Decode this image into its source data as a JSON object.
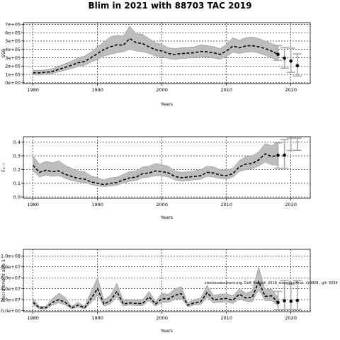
{
  "title": "Blim in 2021 with 88703 TAC 2019",
  "chart_data": [
    {
      "type": "line",
      "panel": "ssb",
      "ylabel": "SSB",
      "xlabel": "Years",
      "xlim": [
        1978.5,
        2023
      ],
      "ylim": [
        -10000,
        720000
      ],
      "xticks": [
        1980,
        1990,
        2000,
        2010,
        2020
      ],
      "yticks": [
        0,
        100000,
        200000,
        300000,
        400000,
        500000,
        600000,
        700000
      ],
      "ytick_labels": [
        "0e+00",
        "1e+05",
        "2e+05",
        "3e+05",
        "4e+05",
        "5e+05",
        "6e+05",
        "7e+05"
      ],
      "grid": true,
      "x": [
        1980,
        1981,
        1982,
        1983,
        1984,
        1985,
        1986,
        1987,
        1988,
        1989,
        1990,
        1991,
        1992,
        1993,
        1994,
        1995,
        1996,
        1997,
        1998,
        1999,
        2000,
        2001,
        2002,
        2003,
        2004,
        2005,
        2006,
        2007,
        2008,
        2009,
        2010,
        2011,
        2012,
        2013,
        2014,
        2015,
        2016,
        2017,
        2018
      ],
      "estimate": [
        120000,
        118000,
        125000,
        135000,
        160000,
        185000,
        210000,
        240000,
        255000,
        300000,
        350000,
        400000,
        430000,
        455000,
        450000,
        530000,
        480000,
        470000,
        430000,
        395000,
        380000,
        350000,
        340000,
        350000,
        355000,
        360000,
        375000,
        370000,
        360000,
        340000,
        380000,
        440000,
        420000,
        440000,
        445000,
        430000,
        410000,
        380000,
        340000
      ],
      "lower": [
        95000,
        92000,
        100000,
        110000,
        130000,
        150000,
        170000,
        195000,
        210000,
        245000,
        280000,
        320000,
        340000,
        360000,
        370000,
        400000,
        380000,
        370000,
        350000,
        320000,
        310000,
        290000,
        280000,
        290000,
        295000,
        300000,
        310000,
        305000,
        295000,
        280000,
        315000,
        365000,
        350000,
        365000,
        370000,
        355000,
        330000,
        300000,
        260000
      ],
      "upper": [
        150000,
        148000,
        155000,
        170000,
        200000,
        230000,
        260000,
        300000,
        320000,
        370000,
        430000,
        490000,
        550000,
        570000,
        560000,
        680000,
        590000,
        580000,
        530000,
        480000,
        460000,
        420000,
        410000,
        420000,
        425000,
        430000,
        455000,
        445000,
        435000,
        410000,
        460000,
        540000,
        510000,
        540000,
        550000,
        530000,
        500000,
        470000,
        440000
      ],
      "projection": [
        {
          "x": 2018,
          "y": 340000,
          "lower": 270000,
          "upper": 445000
        },
        {
          "x": 2019,
          "y": 295000,
          "lower": 175000,
          "upper": 420000
        },
        {
          "x": 2020,
          "y": 260000,
          "lower": 125000,
          "upper": 415000
        },
        {
          "x": 2021,
          "y": 205000,
          "lower": 80000,
          "upper": 345000
        }
      ]
    },
    {
      "type": "line",
      "panel": "f",
      "ylabel": "F₃₋₇",
      "xlabel": "Years",
      "xlim": [
        1978.5,
        2023
      ],
      "ylim": [
        -0.01,
        0.44
      ],
      "xticks": [
        1980,
        1990,
        2000,
        2010,
        2020
      ],
      "yticks": [
        0.0,
        0.1,
        0.2,
        0.3,
        0.4
      ],
      "ytick_labels": [
        "0.0",
        "0.1",
        "0.2",
        "0.3",
        "0.4"
      ],
      "grid": true,
      "x": [
        1980,
        1981,
        1982,
        1983,
        1984,
        1985,
        1986,
        1987,
        1988,
        1989,
        1990,
        1991,
        1992,
        1993,
        1994,
        1995,
        1996,
        1997,
        1998,
        1999,
        2000,
        2001,
        2002,
        2003,
        2004,
        2005,
        2006,
        2007,
        2008,
        2009,
        2010,
        2011,
        2012,
        2013,
        2014,
        2015,
        2016,
        2017,
        2018
      ],
      "estimate": [
        0.23,
        0.18,
        0.195,
        0.185,
        0.19,
        0.165,
        0.15,
        0.135,
        0.13,
        0.11,
        0.1,
        0.09,
        0.1,
        0.105,
        0.125,
        0.14,
        0.145,
        0.17,
        0.175,
        0.19,
        0.185,
        0.175,
        0.15,
        0.14,
        0.145,
        0.15,
        0.155,
        0.18,
        0.175,
        0.16,
        0.155,
        0.17,
        0.22,
        0.24,
        0.245,
        0.27,
        0.315,
        0.295,
        0.305
      ],
      "lower": [
        0.19,
        0.145,
        0.16,
        0.15,
        0.155,
        0.135,
        0.12,
        0.11,
        0.105,
        0.09,
        0.08,
        0.075,
        0.08,
        0.085,
        0.1,
        0.115,
        0.12,
        0.14,
        0.145,
        0.155,
        0.155,
        0.145,
        0.125,
        0.115,
        0.12,
        0.125,
        0.13,
        0.15,
        0.145,
        0.135,
        0.13,
        0.145,
        0.185,
        0.2,
        0.205,
        0.225,
        0.255,
        0.235,
        0.23
      ],
      "upper": [
        0.3,
        0.24,
        0.26,
        0.25,
        0.265,
        0.23,
        0.21,
        0.19,
        0.185,
        0.155,
        0.14,
        0.125,
        0.14,
        0.145,
        0.165,
        0.185,
        0.19,
        0.22,
        0.225,
        0.245,
        0.235,
        0.225,
        0.19,
        0.18,
        0.185,
        0.19,
        0.2,
        0.225,
        0.22,
        0.2,
        0.195,
        0.21,
        0.265,
        0.295,
        0.3,
        0.33,
        0.39,
        0.375,
        0.395
      ],
      "projection": [
        {
          "x": 2018,
          "y": 0.305,
          "lower": 0.21,
          "upper": 0.395
        },
        {
          "x": 2019,
          "y": 0.305,
          "lower": 0.21,
          "upper": 0.42
        }
      ],
      "projection_bars_only": [
        {
          "x": 2020,
          "lower": 0.34,
          "upper": 0.43
        },
        {
          "x": 2021,
          "lower": 0.34,
          "upper": 0.43
        }
      ]
    },
    {
      "type": "line",
      "panel": "recruitment",
      "ylabel": "Recruitment age 1",
      "xlabel": "Years",
      "xlim": [
        1978.5,
        2023
      ],
      "ylim": [
        -2000000,
        112000000
      ],
      "xticks": [
        1980,
        1990,
        2000,
        2010,
        2020
      ],
      "yticks": [
        0,
        20000000,
        40000000,
        60000000,
        80000000,
        100000000
      ],
      "ytick_labels": [
        "0.0e+00",
        "2.0e+07",
        "4.0e+07",
        "6.0e+07",
        "8.0e+07",
        "1.0e+08"
      ],
      "grid": true,
      "annotation": "stockassessment.org, Golf_flemish_2019_closedaetfinal, r10928 , git: 5034",
      "x": [
        1980,
        1981,
        1982,
        1983,
        1984,
        1985,
        1986,
        1987,
        1988,
        1989,
        1990,
        1991,
        1992,
        1993,
        1994,
        1995,
        1996,
        1997,
        1998,
        1999,
        2000,
        2001,
        2002,
        2003,
        2004,
        2005,
        2006,
        2007,
        2008,
        2009,
        2010,
        2011,
        2012,
        2013,
        2014,
        2015,
        2016,
        2017,
        2018
      ],
      "estimate": [
        15000000,
        5000000,
        5000000,
        15000000,
        20000000,
        15000000,
        5000000,
        10000000,
        5000000,
        22000000,
        40000000,
        12000000,
        18000000,
        35000000,
        12000000,
        14000000,
        13000000,
        13000000,
        25000000,
        12000000,
        22000000,
        21000000,
        28000000,
        31000000,
        10000000,
        14000000,
        16000000,
        33000000,
        20000000,
        21000000,
        22000000,
        19000000,
        30000000,
        23000000,
        24000000,
        53000000,
        26000000,
        27000000,
        15000000
      ],
      "lower": [
        10000000,
        3000000,
        3000000,
        10000000,
        14000000,
        10000000,
        3000000,
        6000000,
        3000000,
        14000000,
        28000000,
        8000000,
        12000000,
        25000000,
        8000000,
        10000000,
        9000000,
        9000000,
        18000000,
        8000000,
        15000000,
        15000000,
        20000000,
        22000000,
        7000000,
        10000000,
        11000000,
        24000000,
        14000000,
        15000000,
        16000000,
        13000000,
        21000000,
        17000000,
        16000000,
        38000000,
        18000000,
        18000000,
        9000000
      ],
      "upper": [
        22000000,
        8000000,
        8000000,
        22000000,
        32000000,
        24000000,
        8000000,
        15000000,
        8000000,
        35000000,
        60000000,
        20000000,
        28000000,
        50000000,
        18000000,
        20000000,
        19000000,
        20000000,
        35000000,
        17000000,
        32000000,
        30000000,
        40000000,
        44000000,
        14000000,
        20000000,
        23000000,
        46000000,
        28000000,
        30000000,
        31000000,
        27000000,
        40000000,
        32000000,
        36000000,
        80000000,
        38000000,
        40000000,
        24000000
      ],
      "projection": [
        {
          "x": 2018,
          "y": 15000000,
          "lower": 2000000,
          "upper": 35000000
        },
        {
          "x": 2019,
          "y": 18000000,
          "lower": 2000000,
          "upper": 55000000
        },
        {
          "x": 2020,
          "y": 17000000,
          "lower": 2000000,
          "upper": 48000000
        },
        {
          "x": 2021,
          "y": 18500000,
          "lower": 2000000,
          "upper": 55000000
        }
      ]
    }
  ]
}
